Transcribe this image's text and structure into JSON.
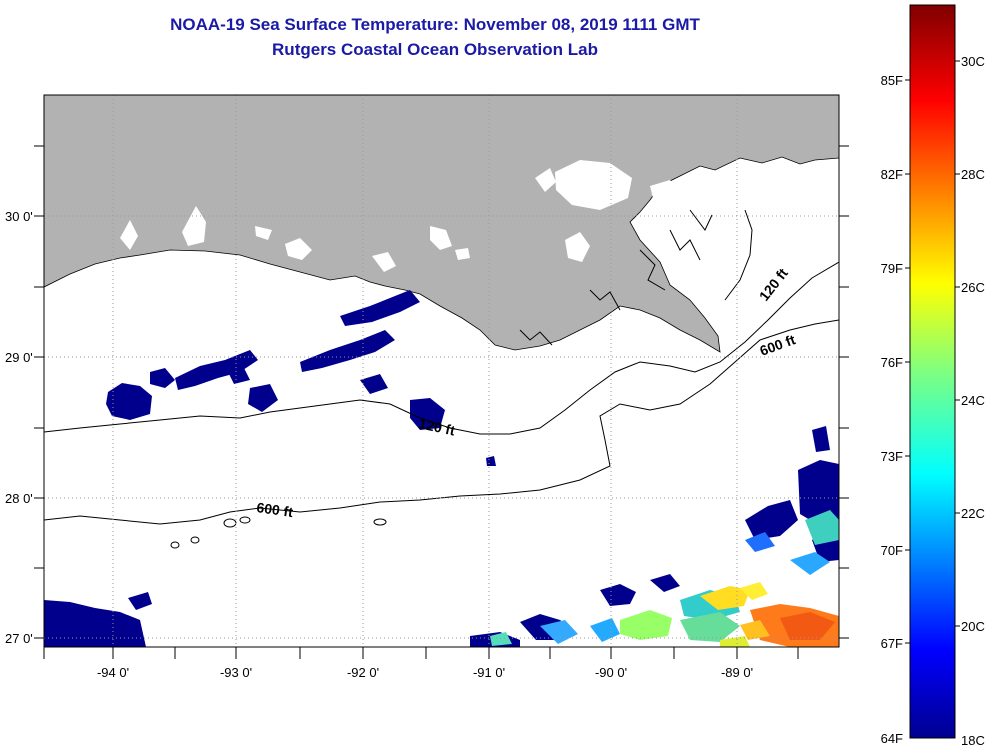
{
  "title": {
    "line1": "NOAA-19 Sea Surface Temperature:  November 08, 2019 1111 GMT",
    "line2": "Rutgers Coastal Ocean Observation Lab"
  },
  "axes": {
    "lon_labels": [
      "-94 0'",
      "-93 0'",
      "-92 0'",
      "-91 0'",
      "-90 0'",
      "-89 0'"
    ],
    "lat_labels": [
      "30 0'",
      "29 0'",
      "28 0'",
      "27 0'"
    ]
  },
  "contours": {
    "c120": "120 ft",
    "c600_east": "600 ft",
    "c600_west": "600 ft",
    "c120_mid": "120 ft"
  },
  "colorbar": {
    "f_labels": [
      "85F",
      "82F",
      "79F",
      "76F",
      "73F",
      "70F",
      "67F",
      "64F"
    ],
    "c_labels": [
      "30C",
      "28C",
      "26C",
      "24C",
      "22C",
      "20C",
      "18C"
    ]
  },
  "colors": {
    "title": "#1a1aa6",
    "land": "#b2b2b2",
    "cold_sst": "#00008c"
  }
}
